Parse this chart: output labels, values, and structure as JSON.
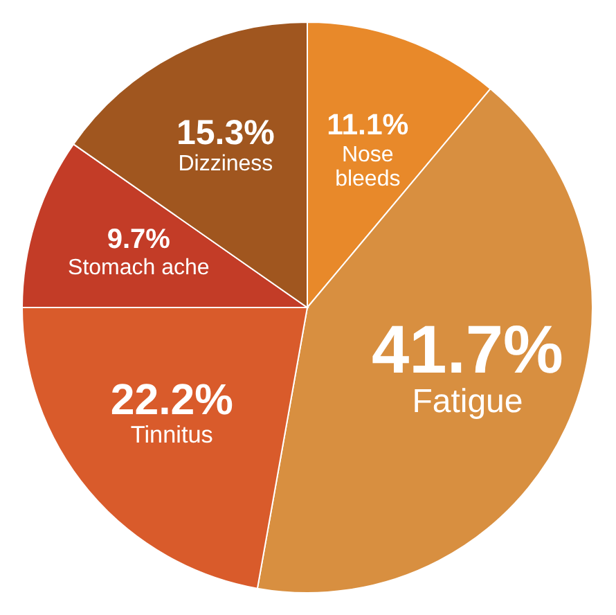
{
  "chart_data": {
    "type": "pie",
    "categories": [
      "Nose\nbleeds",
      "Fatigue",
      "Tinnitus",
      "Stomach ache",
      "Dizziness"
    ],
    "values": [
      11.1,
      41.7,
      22.2,
      9.7,
      15.3
    ],
    "value_labels": [
      "11.1%",
      "41.7%",
      "22.2%",
      "9.7%",
      "15.3%"
    ],
    "colors": [
      "#e8892a",
      "#d88f40",
      "#d95b2b",
      "#c33c27",
      "#a0561f"
    ]
  }
}
